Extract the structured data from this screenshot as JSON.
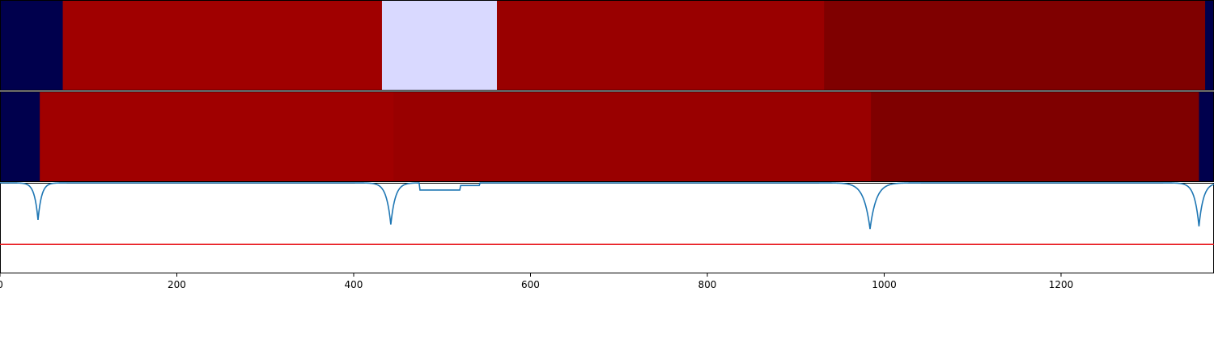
{
  "chart_data": {
    "type": "heatmap",
    "x_range": [
      0,
      1373
    ],
    "x_ticks": [
      0,
      200,
      400,
      600,
      800,
      1000,
      1200
    ],
    "tracks": [
      {
        "segments": [
          {
            "start": 0,
            "end": 71,
            "color": "#00004d"
          },
          {
            "start": 71,
            "end": 432,
            "color": "#a00000"
          },
          {
            "start": 432,
            "end": 562,
            "color": "#d9d9ff"
          },
          {
            "start": 562,
            "end": 932,
            "color": "#990000"
          },
          {
            "start": 932,
            "end": 1363,
            "color": "#7f0000"
          },
          {
            "start": 1363,
            "end": 1373,
            "color": "#00004d"
          }
        ]
      },
      {
        "segments": [
          {
            "start": 0,
            "end": 45,
            "color": "#00004d"
          },
          {
            "start": 45,
            "end": 445,
            "color": "#a00000"
          },
          {
            "start": 445,
            "end": 985,
            "color": "#990000"
          },
          {
            "start": 985,
            "end": 1356,
            "color": "#7f0000"
          },
          {
            "start": 1356,
            "end": 1373,
            "color": "#00004d"
          }
        ]
      }
    ],
    "line_plot": {
      "y_range": [
        -1.0,
        0.0
      ],
      "threshold": -0.68,
      "threshold_color": "#e8161b",
      "line_color": "#1f77b4",
      "dips": [
        {
          "center": 43,
          "depth": -0.41,
          "width": 4
        },
        {
          "center": 442,
          "depth": -0.46,
          "width": 5
        },
        {
          "center": 984,
          "depth": -0.51,
          "width": 7
        },
        {
          "center": 1356,
          "depth": -0.48,
          "width": 5
        }
      ],
      "shoulders": [
        {
          "start": 475,
          "end": 520,
          "level": -0.08
        },
        {
          "start": 520,
          "end": 542,
          "level": -0.03
        }
      ]
    }
  }
}
